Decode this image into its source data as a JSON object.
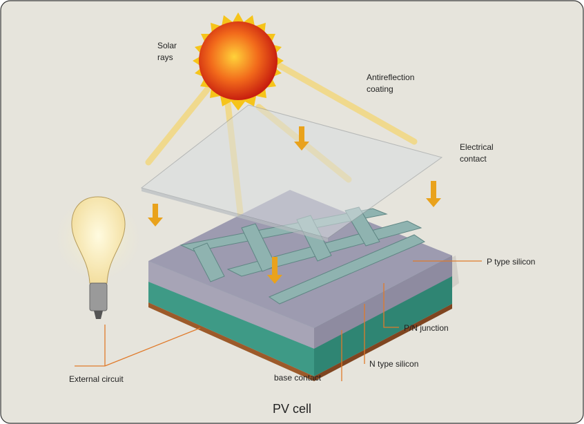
{
  "caption": "PV cell",
  "labels": [
    {
      "lines": [
        "Solar",
        "rays"
      ]
    },
    {
      "lines": [
        "Antireflection",
        "coating"
      ]
    },
    {
      "lines": [
        "Electrical",
        "contact"
      ]
    },
    {
      "lines": [
        "P type silicon"
      ]
    },
    {
      "lines": [
        "P/N junction"
      ]
    },
    {
      "lines": [
        "N type silicon"
      ]
    },
    {
      "lines": [
        "base contact"
      ]
    },
    {
      "lines": [
        "External circuit"
      ]
    }
  ]
}
